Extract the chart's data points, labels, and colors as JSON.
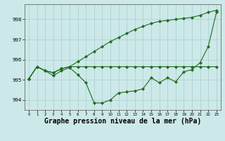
{
  "x": [
    0,
    1,
    2,
    3,
    4,
    5,
    6,
    7,
    8,
    9,
    10,
    11,
    12,
    13,
    14,
    15,
    16,
    17,
    18,
    19,
    20,
    21,
    22,
    23
  ],
  "line1": [
    995.05,
    995.65,
    995.45,
    995.35,
    995.55,
    995.65,
    995.65,
    995.65,
    995.65,
    995.65,
    995.65,
    995.65,
    995.65,
    995.65,
    995.65,
    995.65,
    995.65,
    995.65,
    995.65,
    995.65,
    995.65,
    995.65,
    995.65,
    995.65
  ],
  "line2": [
    995.05,
    995.65,
    995.45,
    995.35,
    995.55,
    995.65,
    995.9,
    996.15,
    996.4,
    996.65,
    996.9,
    997.1,
    997.3,
    997.5,
    997.65,
    997.8,
    997.9,
    997.95,
    998.0,
    998.05,
    998.1,
    998.2,
    998.35,
    998.45
  ],
  "line3": [
    995.05,
    995.65,
    995.45,
    995.2,
    995.45,
    995.6,
    995.25,
    994.85,
    993.85,
    993.85,
    994.0,
    994.35,
    994.4,
    994.45,
    994.55,
    995.1,
    994.85,
    995.1,
    994.9,
    995.4,
    995.5,
    995.85,
    996.65,
    998.35
  ],
  "ylim": [
    993.5,
    998.75
  ],
  "xlim": [
    -0.5,
    23.5
  ],
  "yticks": [
    994,
    995,
    996,
    997,
    998
  ],
  "xticks": [
    0,
    1,
    2,
    3,
    4,
    5,
    6,
    7,
    8,
    9,
    10,
    11,
    12,
    13,
    14,
    15,
    16,
    17,
    18,
    19,
    20,
    21,
    22,
    23
  ],
  "line_color": "#1e6b1e",
  "bg_color": "#cce8e8",
  "grid_color": "#aacece",
  "xlabel": "Graphe pression niveau de la mer (hPa)",
  "xlabel_fontsize": 7,
  "marker": "D",
  "marker_size": 2.2,
  "linewidth": 0.8
}
